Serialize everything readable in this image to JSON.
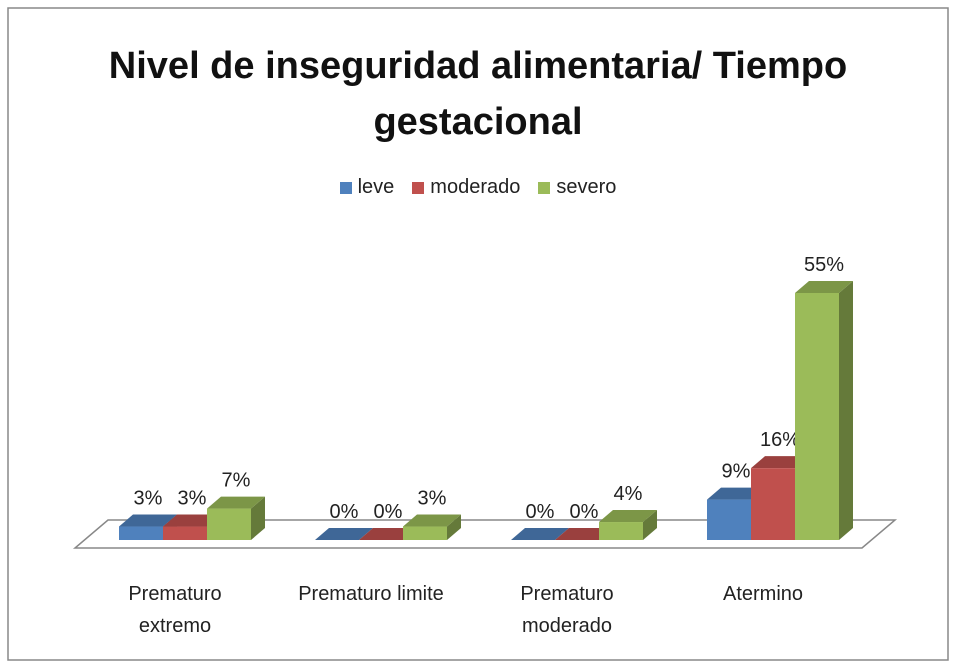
{
  "chart_data": {
    "type": "bar3d",
    "title": "Nivel de inseguridad alimentaria/ Tiempo gestacional",
    "categories": [
      "Prematuro extremo",
      "Prematuro limite",
      "Prematuro moderado",
      "Atermino"
    ],
    "series": [
      {
        "name": "leve",
        "color": "#4f81bd",
        "values": [
          3,
          0,
          0,
          9
        ],
        "value_labels": [
          "3%",
          "0%",
          "0%",
          "9%"
        ]
      },
      {
        "name": "moderado",
        "color": "#c0504d",
        "values": [
          3,
          0,
          0,
          16
        ],
        "value_labels": [
          "3%",
          "0%",
          "0%",
          "16%"
        ]
      },
      {
        "name": "severo",
        "color": "#9bbb59",
        "values": [
          7,
          3,
          4,
          55
        ],
        "value_labels": [
          "7%",
          "3%",
          "4%",
          "55%"
        ]
      }
    ],
    "legend": "top"
  }
}
